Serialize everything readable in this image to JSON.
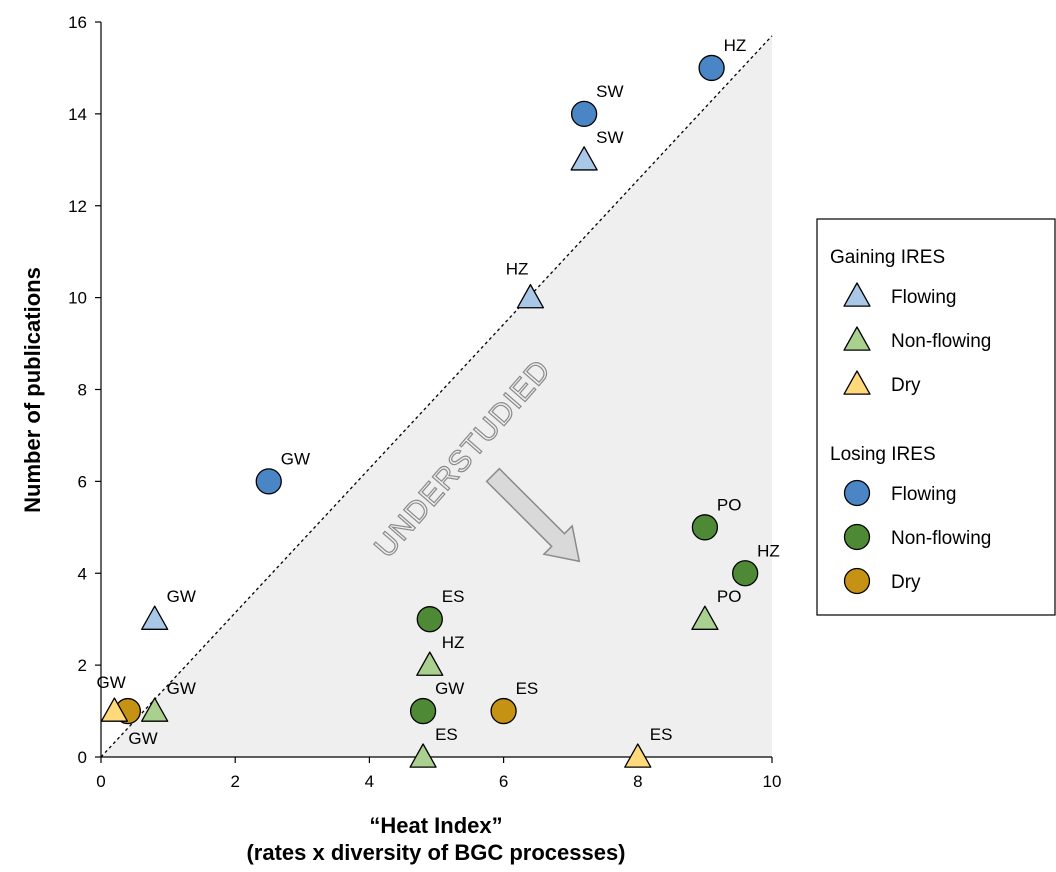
{
  "chart_data": {
    "type": "scatter",
    "xlabel": "“Heat Index”",
    "xlabel_line2": "(rates x diversity of BGC processes)",
    "ylabel": "Number of publications",
    "xlim": [
      0,
      10
    ],
    "ylim": [
      0,
      16
    ],
    "x_ticks": [
      "0",
      "2",
      "4",
      "6",
      "8",
      "10"
    ],
    "y_ticks": [
      "0",
      "2",
      "4",
      "6",
      "8",
      "10",
      "12",
      "14",
      "16"
    ],
    "grid": false,
    "legend_position": "right",
    "annotation": "UNDERSTUDIED",
    "diagonal_line": {
      "style": "dashed",
      "from": [
        0,
        0
      ],
      "to": [
        10,
        15.7
      ]
    },
    "shaded_region": "below diagonal",
    "colors": {
      "flowing_gaining": "#a9c8e8",
      "nonflowing_gaining": "#a9d08e",
      "dry_gaining": "#ffd97a",
      "flowing_losing": "#4a86c5",
      "nonflowing_losing": "#4e8a35",
      "dry_losing": "#c69214",
      "shade": "#efefef",
      "arrow_fill": "#d9d9d9",
      "arrow_stroke": "#8a8a8a"
    },
    "legend": {
      "groups": [
        {
          "title": "Gaining IRES",
          "shape": "triangle",
          "items": [
            {
              "label": "Flowing",
              "color": "#a9c8e8"
            },
            {
              "label": "Non-flowing",
              "color": "#a9d08e"
            },
            {
              "label": "Dry",
              "color": "#ffd97a"
            }
          ]
        },
        {
          "title": "Losing IRES",
          "shape": "circle",
          "items": [
            {
              "label": "Flowing",
              "color": "#4a86c5"
            },
            {
              "label": "Non-flowing",
              "color": "#4e8a35"
            },
            {
              "label": "Dry",
              "color": "#c69214"
            }
          ]
        }
      ]
    },
    "points": [
      {
        "x": 9.1,
        "y": 15,
        "label": "HZ",
        "shape": "circle",
        "color": "#4a86c5",
        "label_pos": "upper-right"
      },
      {
        "x": 7.2,
        "y": 14,
        "label": "SW",
        "shape": "circle",
        "color": "#4a86c5",
        "label_pos": "upper-right"
      },
      {
        "x": 2.5,
        "y": 6,
        "label": "GW",
        "shape": "circle",
        "color": "#4a86c5",
        "label_pos": "upper-right"
      },
      {
        "x": 9.0,
        "y": 5,
        "label": "PO",
        "shape": "circle",
        "color": "#4e8a35",
        "label_pos": "upper-right"
      },
      {
        "x": 9.6,
        "y": 4,
        "label": "HZ",
        "shape": "circle",
        "color": "#4e8a35",
        "label_pos": "upper-right"
      },
      {
        "x": 4.9,
        "y": 3,
        "label": "ES",
        "shape": "circle",
        "color": "#4e8a35",
        "label_pos": "upper-right"
      },
      {
        "x": 4.8,
        "y": 1,
        "label": "GW",
        "shape": "circle",
        "color": "#4e8a35",
        "label_pos": "upper-right"
      },
      {
        "x": 6.0,
        "y": 1,
        "label": "ES",
        "shape": "circle",
        "color": "#c69214",
        "label_pos": "upper-right"
      },
      {
        "x": 0.4,
        "y": 1,
        "label": "GW",
        "shape": "circle",
        "color": "#c69214",
        "label_pos": "upper-left"
      },
      {
        "x": 7.2,
        "y": 13,
        "label": "SW",
        "shape": "triangle",
        "color": "#a9c8e8",
        "label_pos": "upper-right"
      },
      {
        "x": 6.4,
        "y": 10,
        "label": "HZ",
        "shape": "triangle",
        "color": "#a9c8e8",
        "label_pos": "upper-left"
      },
      {
        "x": 0.8,
        "y": 3,
        "label": "GW",
        "shape": "triangle",
        "color": "#a9c8e8",
        "label_pos": "upper-right"
      },
      {
        "x": 9.0,
        "y": 3,
        "label": "PO",
        "shape": "triangle",
        "color": "#a9d08e",
        "label_pos": "upper-right"
      },
      {
        "x": 4.9,
        "y": 2,
        "label": "HZ",
        "shape": "triangle",
        "color": "#a9d08e",
        "label_pos": "upper-right"
      },
      {
        "x": 0.8,
        "y": 1,
        "label": "GW",
        "shape": "triangle",
        "color": "#a9d08e",
        "label_pos": "upper-right"
      },
      {
        "x": 4.8,
        "y": 0,
        "label": "ES",
        "shape": "triangle",
        "color": "#a9d08e",
        "label_pos": "upper-right"
      },
      {
        "x": 0.2,
        "y": 1,
        "label": "GW",
        "shape": "triangle",
        "color": "#ffd97a",
        "label_pos": "lower-right"
      },
      {
        "x": 8.0,
        "y": 0,
        "label": "ES",
        "shape": "triangle",
        "color": "#ffd97a",
        "label_pos": "upper-right"
      }
    ]
  }
}
